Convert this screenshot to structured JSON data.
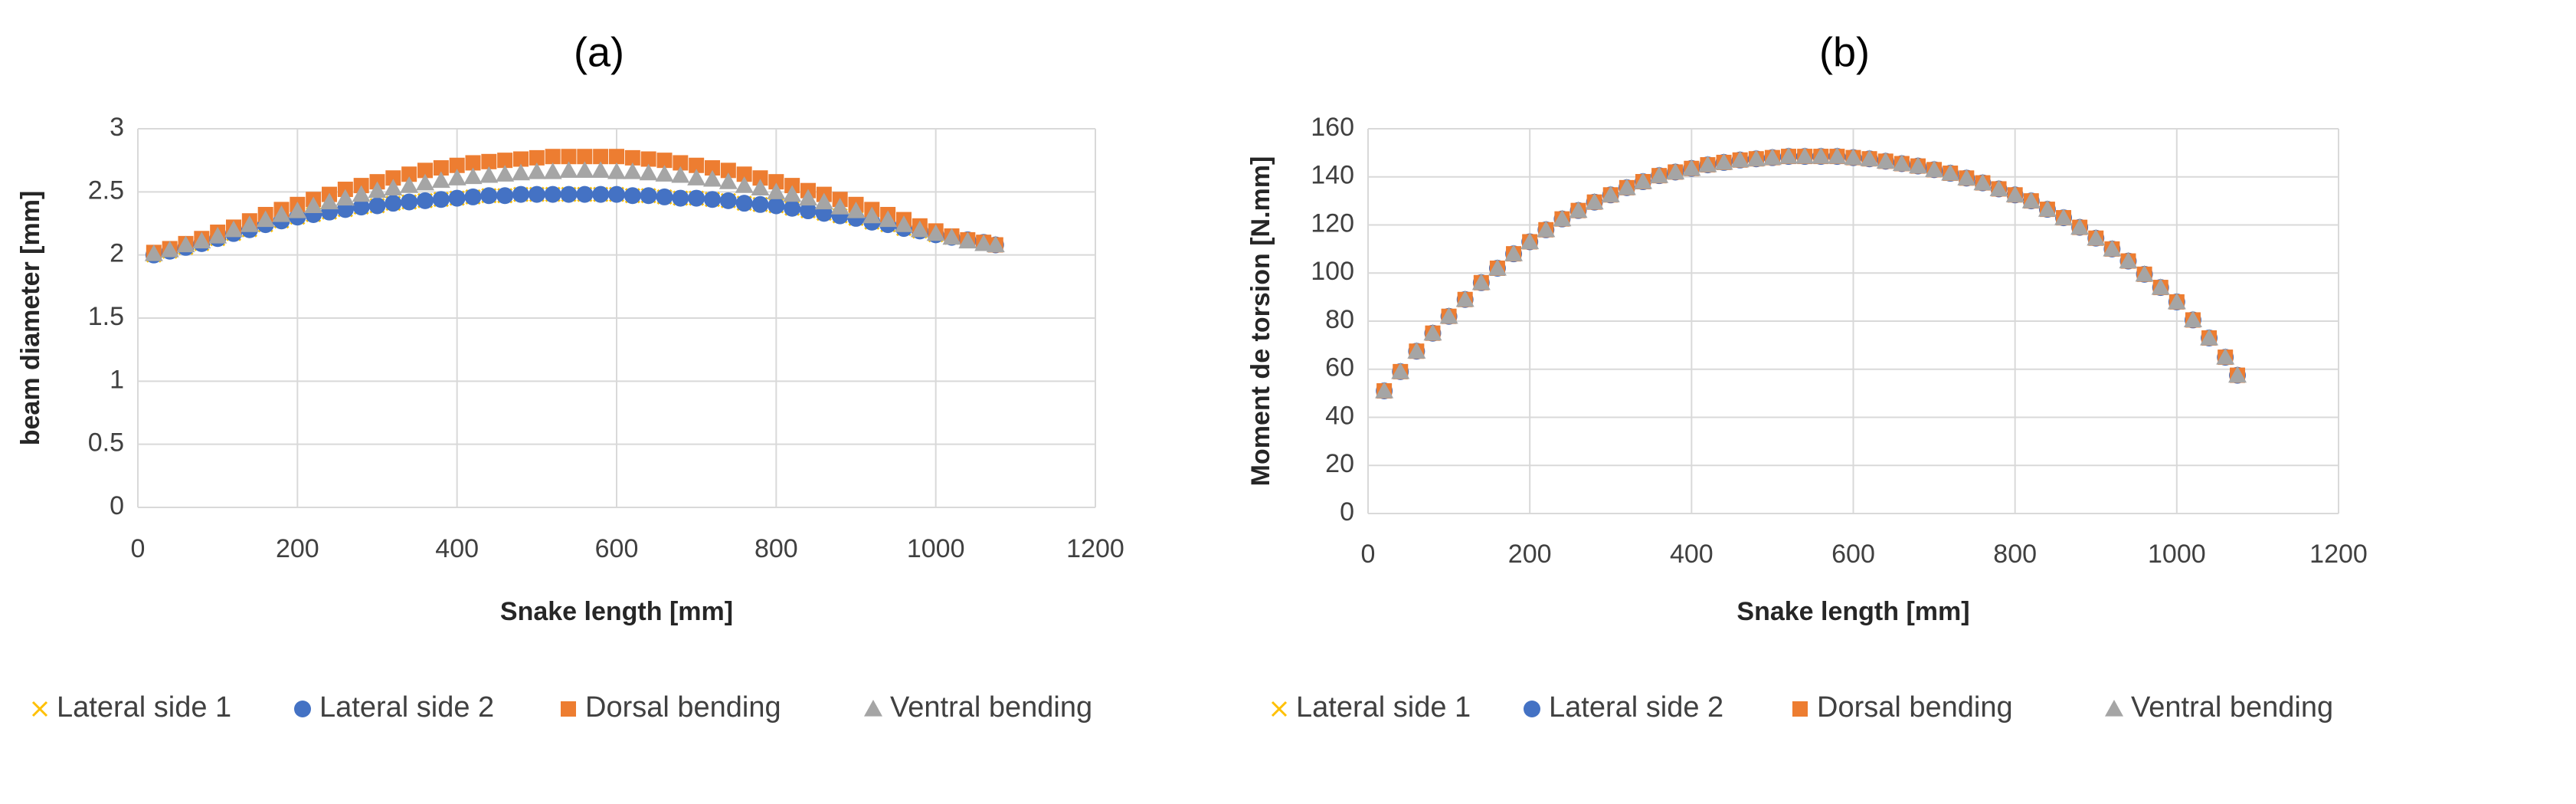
{
  "chart_data": [
    {
      "id": "a",
      "type": "scatter",
      "title": "(a)",
      "xlabel": "Snake length [mm]",
      "ylabel": "beam diameter [mm]",
      "xlim": [
        0,
        1200
      ],
      "ylim": [
        0,
        3
      ],
      "xticks": [
        0,
        200,
        400,
        600,
        800,
        1000,
        1200
      ],
      "yticks": [
        0,
        0.5,
        1,
        1.5,
        2,
        2.5,
        3
      ],
      "xtick_labels": [
        "0",
        "200",
        "400",
        "600",
        "800",
        "1000",
        "1200"
      ],
      "ytick_labels": [
        "0",
        "0.5",
        "1",
        "1.5",
        "2",
        "2.5",
        "3"
      ],
      "legend_position": "bottom",
      "series": [
        {
          "name": "Lateral side 1",
          "marker": "x",
          "color": "#ffc000",
          "x": [
            20,
            40,
            60,
            80,
            100,
            120,
            140,
            160,
            180,
            200,
            220,
            240,
            260,
            280,
            300,
            320,
            340,
            360,
            380,
            400,
            420,
            440,
            460,
            480,
            500,
            520,
            540,
            560,
            580,
            600,
            620,
            640,
            660,
            680,
            700,
            720,
            740,
            760,
            780,
            800,
            820,
            840,
            860,
            880,
            900,
            920,
            940,
            960,
            980,
            1000,
            1020,
            1040,
            1060,
            1075
          ],
          "y": [
            2.0,
            2.03,
            2.06,
            2.09,
            2.13,
            2.17,
            2.2,
            2.24,
            2.27,
            2.3,
            2.32,
            2.34,
            2.36,
            2.38,
            2.39,
            2.41,
            2.42,
            2.43,
            2.44,
            2.45,
            2.46,
            2.47,
            2.47,
            2.48,
            2.48,
            2.48,
            2.48,
            2.48,
            2.48,
            2.48,
            2.47,
            2.47,
            2.46,
            2.45,
            2.45,
            2.44,
            2.43,
            2.41,
            2.4,
            2.39,
            2.37,
            2.35,
            2.33,
            2.31,
            2.29,
            2.26,
            2.24,
            2.21,
            2.19,
            2.16,
            2.14,
            2.12,
            2.1,
            2.08
          ]
        },
        {
          "name": "Lateral side 2",
          "marker": "circle",
          "color": "#4472c4",
          "x": [
            20,
            40,
            60,
            80,
            100,
            120,
            140,
            160,
            180,
            200,
            220,
            240,
            260,
            280,
            300,
            320,
            340,
            360,
            380,
            400,
            420,
            440,
            460,
            480,
            500,
            520,
            540,
            560,
            580,
            600,
            620,
            640,
            660,
            680,
            700,
            720,
            740,
            760,
            780,
            800,
            820,
            840,
            860,
            880,
            900,
            920,
            940,
            960,
            980,
            1000,
            1020,
            1040,
            1060,
            1075
          ],
          "y": [
            2.0,
            2.03,
            2.06,
            2.09,
            2.13,
            2.17,
            2.2,
            2.24,
            2.27,
            2.3,
            2.32,
            2.34,
            2.36,
            2.38,
            2.39,
            2.41,
            2.42,
            2.43,
            2.44,
            2.45,
            2.46,
            2.47,
            2.47,
            2.48,
            2.48,
            2.48,
            2.48,
            2.48,
            2.48,
            2.48,
            2.47,
            2.47,
            2.46,
            2.45,
            2.45,
            2.44,
            2.43,
            2.41,
            2.4,
            2.39,
            2.37,
            2.35,
            2.33,
            2.31,
            2.29,
            2.26,
            2.24,
            2.21,
            2.19,
            2.16,
            2.14,
            2.12,
            2.1,
            2.08
          ]
        },
        {
          "name": "Dorsal bending",
          "marker": "square",
          "color": "#ed7d31",
          "x": [
            20,
            40,
            60,
            80,
            100,
            120,
            140,
            160,
            180,
            200,
            220,
            240,
            260,
            280,
            300,
            320,
            340,
            360,
            380,
            400,
            420,
            440,
            460,
            480,
            500,
            520,
            540,
            560,
            580,
            600,
            620,
            640,
            660,
            680,
            700,
            720,
            740,
            760,
            780,
            800,
            820,
            840,
            860,
            880,
            900,
            920,
            940,
            960,
            980,
            1000,
            1020,
            1040,
            1060,
            1075
          ],
          "y": [
            2.02,
            2.05,
            2.09,
            2.13,
            2.18,
            2.22,
            2.27,
            2.32,
            2.36,
            2.4,
            2.44,
            2.48,
            2.52,
            2.55,
            2.58,
            2.61,
            2.64,
            2.67,
            2.69,
            2.71,
            2.73,
            2.74,
            2.75,
            2.76,
            2.77,
            2.78,
            2.78,
            2.78,
            2.78,
            2.78,
            2.77,
            2.76,
            2.75,
            2.73,
            2.71,
            2.69,
            2.67,
            2.64,
            2.61,
            2.58,
            2.55,
            2.51,
            2.48,
            2.44,
            2.4,
            2.36,
            2.32,
            2.28,
            2.23,
            2.19,
            2.15,
            2.12,
            2.1,
            2.08
          ]
        },
        {
          "name": "Ventral bending",
          "marker": "triangle",
          "color": "#a5a5a5",
          "x": [
            20,
            40,
            60,
            80,
            100,
            120,
            140,
            160,
            180,
            200,
            220,
            240,
            260,
            280,
            300,
            320,
            340,
            360,
            380,
            400,
            420,
            440,
            460,
            480,
            500,
            520,
            540,
            560,
            580,
            600,
            620,
            640,
            660,
            680,
            700,
            720,
            740,
            760,
            780,
            800,
            820,
            840,
            860,
            880,
            900,
            920,
            940,
            960,
            980,
            1000,
            1020,
            1040,
            1060,
            1075
          ],
          "y": [
            2.01,
            2.04,
            2.08,
            2.11,
            2.15,
            2.2,
            2.24,
            2.28,
            2.32,
            2.35,
            2.39,
            2.42,
            2.45,
            2.48,
            2.51,
            2.53,
            2.55,
            2.57,
            2.59,
            2.61,
            2.62,
            2.63,
            2.64,
            2.65,
            2.66,
            2.66,
            2.67,
            2.67,
            2.67,
            2.66,
            2.66,
            2.65,
            2.64,
            2.63,
            2.61,
            2.6,
            2.58,
            2.55,
            2.53,
            2.5,
            2.48,
            2.45,
            2.42,
            2.38,
            2.35,
            2.31,
            2.28,
            2.24,
            2.2,
            2.17,
            2.14,
            2.11,
            2.09,
            2.08
          ]
        }
      ]
    },
    {
      "id": "b",
      "type": "scatter",
      "title": "(b)",
      "xlabel": "Snake length [mm]",
      "ylabel": "Moment de torsion [N.mm]",
      "xlim": [
        0,
        1200
      ],
      "ylim": [
        0,
        160
      ],
      "xticks": [
        0,
        200,
        400,
        600,
        800,
        1000,
        1200
      ],
      "yticks": [
        0,
        20,
        40,
        60,
        80,
        100,
        120,
        140,
        160
      ],
      "xtick_labels": [
        "0",
        "200",
        "400",
        "600",
        "800",
        "1000",
        "1200"
      ],
      "ytick_labels": [
        "0",
        "20",
        "40",
        "60",
        "80",
        "100",
        "120",
        "140",
        "160"
      ],
      "legend_position": "bottom",
      "series": [
        {
          "name": "Lateral side 1",
          "marker": "x",
          "color": "#ffc000",
          "x": [
            20,
            40,
            60,
            80,
            100,
            120,
            140,
            160,
            180,
            200,
            220,
            240,
            260,
            280,
            300,
            320,
            340,
            360,
            380,
            400,
            420,
            440,
            460,
            480,
            500,
            520,
            540,
            560,
            580,
            600,
            620,
            640,
            660,
            680,
            700,
            720,
            740,
            760,
            780,
            800,
            820,
            840,
            860,
            880,
            900,
            920,
            940,
            960,
            980,
            1000,
            1020,
            1040,
            1060,
            1075
          ],
          "y": [
            51.0,
            59.0,
            67.5,
            75.0,
            82.0,
            89.0,
            96.0,
            102.0,
            108.0,
            113.0,
            118.0,
            122.5,
            126.0,
            129.5,
            132.5,
            135.5,
            138.0,
            140.5,
            142.0,
            143.5,
            145.0,
            146.0,
            147.0,
            147.5,
            148.0,
            148.5,
            148.5,
            148.5,
            148.5,
            148.0,
            147.5,
            146.5,
            145.5,
            144.5,
            143.0,
            141.5,
            139.5,
            137.5,
            135.0,
            132.5,
            130.0,
            126.5,
            123.0,
            119.0,
            114.5,
            110.0,
            105.0,
            99.5,
            94.0,
            88.0,
            80.5,
            73.0,
            65.0,
            57.5
          ]
        },
        {
          "name": "Lateral side 2",
          "marker": "circle",
          "color": "#4472c4",
          "x": [
            20,
            40,
            60,
            80,
            100,
            120,
            140,
            160,
            180,
            200,
            220,
            240,
            260,
            280,
            300,
            320,
            340,
            360,
            380,
            400,
            420,
            440,
            460,
            480,
            500,
            520,
            540,
            560,
            580,
            600,
            620,
            640,
            660,
            680,
            700,
            720,
            740,
            760,
            780,
            800,
            820,
            840,
            860,
            880,
            900,
            920,
            940,
            960,
            980,
            1000,
            1020,
            1040,
            1060,
            1075
          ],
          "y": [
            51.0,
            59.0,
            67.5,
            75.0,
            82.0,
            89.0,
            96.0,
            102.0,
            108.0,
            113.0,
            118.0,
            122.5,
            126.0,
            129.5,
            132.5,
            135.5,
            138.0,
            140.5,
            142.0,
            143.5,
            145.0,
            146.0,
            147.0,
            147.5,
            148.0,
            148.5,
            148.5,
            148.5,
            148.5,
            148.0,
            147.5,
            146.5,
            145.5,
            144.5,
            143.0,
            141.5,
            139.5,
            137.5,
            135.0,
            132.5,
            130.0,
            126.5,
            123.0,
            119.0,
            114.5,
            110.0,
            105.0,
            99.5,
            94.0,
            88.0,
            80.5,
            73.0,
            65.0,
            57.5
          ]
        },
        {
          "name": "Dorsal bending",
          "marker": "square",
          "color": "#ed7d31",
          "x": [
            20,
            40,
            60,
            80,
            100,
            120,
            140,
            160,
            180,
            200,
            220,
            240,
            260,
            280,
            300,
            320,
            340,
            360,
            380,
            400,
            420,
            440,
            460,
            480,
            500,
            520,
            540,
            560,
            580,
            600,
            620,
            640,
            660,
            680,
            700,
            720,
            740,
            760,
            780,
            800,
            820,
            840,
            860,
            880,
            900,
            920,
            940,
            960,
            980,
            1000,
            1020,
            1040,
            1060,
            1075
          ],
          "y": [
            51.0,
            59.0,
            67.5,
            75.0,
            82.0,
            89.0,
            96.0,
            102.0,
            108.0,
            113.0,
            118.0,
            122.5,
            126.0,
            129.5,
            132.5,
            135.5,
            138.0,
            140.5,
            142.0,
            143.5,
            145.0,
            146.0,
            147.0,
            147.5,
            148.0,
            148.5,
            148.5,
            148.5,
            148.5,
            148.0,
            147.5,
            146.5,
            145.5,
            144.5,
            143.0,
            141.5,
            139.5,
            137.5,
            135.0,
            132.5,
            130.0,
            126.5,
            123.0,
            119.0,
            114.5,
            110.0,
            105.0,
            99.5,
            94.0,
            88.0,
            80.5,
            73.0,
            65.0,
            57.5
          ]
        },
        {
          "name": "Ventral bending",
          "marker": "triangle",
          "color": "#a5a5a5",
          "x": [
            20,
            40,
            60,
            80,
            100,
            120,
            140,
            160,
            180,
            200,
            220,
            240,
            260,
            280,
            300,
            320,
            340,
            360,
            380,
            400,
            420,
            440,
            460,
            480,
            500,
            520,
            540,
            560,
            580,
            600,
            620,
            640,
            660,
            680,
            700,
            720,
            740,
            760,
            780,
            800,
            820,
            840,
            860,
            880,
            900,
            920,
            940,
            960,
            980,
            1000,
            1020,
            1040,
            1060,
            1075
          ],
          "y": [
            51.0,
            59.0,
            67.5,
            75.0,
            82.0,
            89.0,
            96.0,
            102.0,
            108.0,
            113.0,
            118.0,
            122.5,
            126.0,
            129.5,
            132.5,
            135.5,
            138.0,
            140.5,
            142.0,
            143.5,
            145.0,
            146.0,
            147.0,
            147.5,
            148.0,
            148.5,
            148.5,
            148.5,
            148.5,
            148.0,
            147.5,
            146.5,
            145.5,
            144.5,
            143.0,
            141.5,
            139.5,
            137.5,
            135.0,
            132.5,
            130.0,
            126.5,
            123.0,
            119.0,
            114.5,
            110.0,
            105.0,
            99.5,
            94.0,
            88.0,
            80.5,
            73.0,
            65.0,
            57.5
          ]
        }
      ]
    }
  ]
}
